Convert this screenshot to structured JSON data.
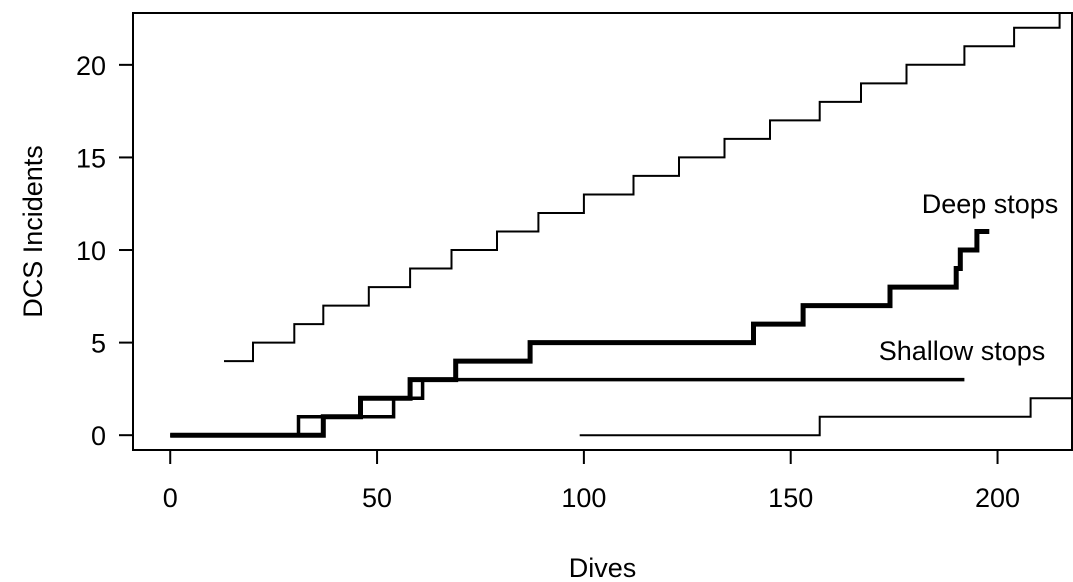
{
  "chart_data": {
    "type": "line",
    "title": "",
    "xlabel": "Dives",
    "ylabel": "DCS Incidents",
    "xlim": [
      -9,
      218
    ],
    "ylim": [
      -0.8,
      22.8
    ],
    "x_ticks": [
      0,
      50,
      100,
      150,
      200
    ],
    "y_ticks": [
      0,
      5,
      10,
      15,
      20
    ],
    "grid": false,
    "legend": "none",
    "series": [
      {
        "name": "Deep stops",
        "color": "#000000",
        "style": "step",
        "weight": "bold",
        "points": [
          [
            0,
            0
          ],
          [
            37,
            0
          ],
          [
            37,
            1
          ],
          [
            46,
            1
          ],
          [
            46,
            2
          ],
          [
            58,
            2
          ],
          [
            58,
            3
          ],
          [
            69,
            3
          ],
          [
            69,
            4
          ],
          [
            87,
            4
          ],
          [
            87,
            5
          ],
          [
            141,
            5
          ],
          [
            141,
            6
          ],
          [
            153,
            6
          ],
          [
            153,
            7
          ],
          [
            174,
            7
          ],
          [
            174,
            8
          ],
          [
            190,
            8
          ],
          [
            190,
            9
          ],
          [
            191,
            9
          ],
          [
            191,
            10
          ],
          [
            195,
            10
          ],
          [
            195,
            11
          ],
          [
            198,
            11
          ]
        ]
      },
      {
        "name": "Shallow stops",
        "color": "#000000",
        "style": "step",
        "weight": "medium",
        "points": [
          [
            0,
            0
          ],
          [
            31,
            0
          ],
          [
            31,
            1
          ],
          [
            54,
            1
          ],
          [
            54,
            2
          ],
          [
            61,
            2
          ],
          [
            61,
            3
          ],
          [
            192,
            3
          ]
        ]
      },
      {
        "name": "",
        "color": "#000000",
        "style": "step",
        "weight": "thin",
        "points": [
          [
            13,
            4
          ],
          [
            20,
            4
          ],
          [
            20,
            5
          ],
          [
            30,
            5
          ],
          [
            30,
            6
          ],
          [
            37,
            6
          ],
          [
            37,
            7
          ],
          [
            48,
            7
          ],
          [
            48,
            8
          ],
          [
            58,
            8
          ],
          [
            58,
            9
          ],
          [
            68,
            9
          ],
          [
            68,
            10
          ],
          [
            79,
            10
          ],
          [
            79,
            11
          ],
          [
            89,
            11
          ],
          [
            89,
            12
          ],
          [
            100,
            12
          ],
          [
            100,
            13
          ],
          [
            112,
            13
          ],
          [
            112,
            14
          ],
          [
            123,
            14
          ],
          [
            123,
            15
          ],
          [
            134,
            15
          ],
          [
            134,
            16
          ],
          [
            145,
            16
          ],
          [
            145,
            17
          ],
          [
            157,
            17
          ],
          [
            157,
            18
          ],
          [
            167,
            18
          ],
          [
            167,
            19
          ],
          [
            178,
            19
          ],
          [
            178,
            20
          ],
          [
            192,
            20
          ],
          [
            192,
            21
          ],
          [
            204,
            21
          ],
          [
            204,
            22
          ],
          [
            215,
            22
          ],
          [
            215,
            22.8
          ]
        ]
      },
      {
        "name": "",
        "color": "#000000",
        "style": "step",
        "weight": "thin",
        "points": [
          [
            99,
            0
          ],
          [
            157,
            0
          ],
          [
            157,
            1
          ],
          [
            208,
            1
          ],
          [
            208,
            2
          ],
          [
            218,
            2
          ]
        ]
      }
    ]
  }
}
